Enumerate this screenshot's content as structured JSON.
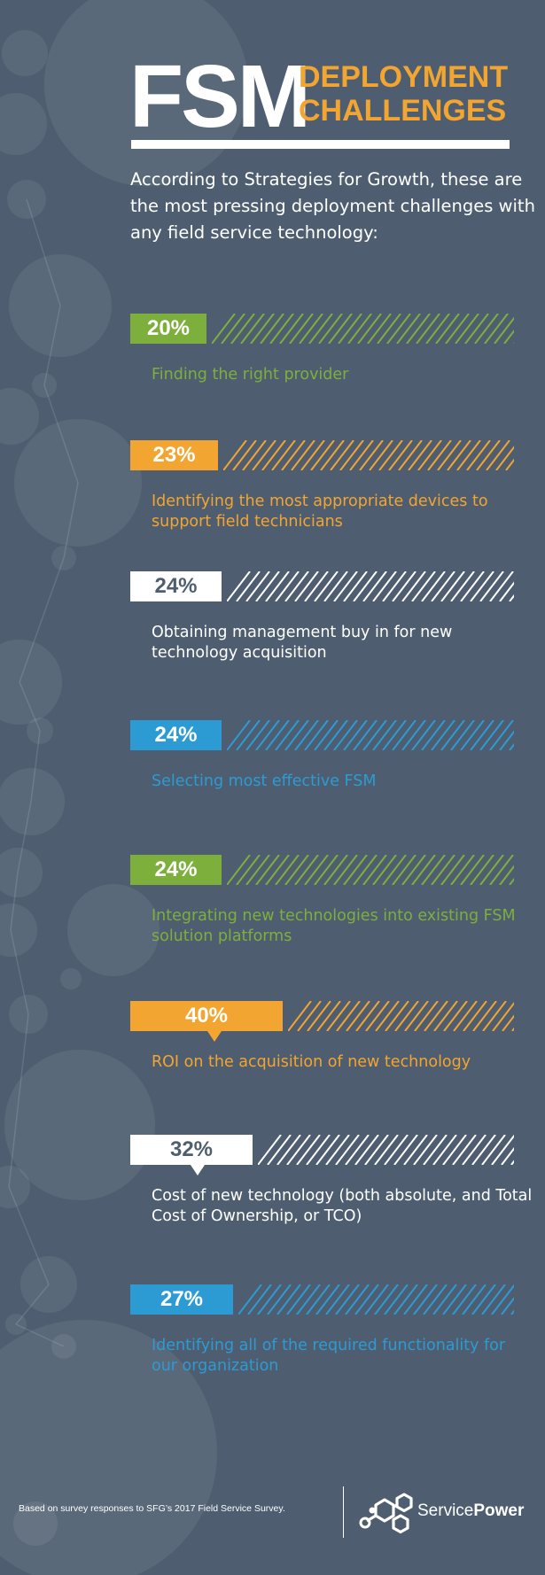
{
  "header": {
    "title_main": "FSM",
    "title_line1": "DEPLOYMENT",
    "title_line2": "CHALLENGES",
    "intro": "According to Strategies for Growth, these are the most pressing deployment challenges with any field service technology:"
  },
  "colors": {
    "background": "#4e5e70",
    "green": "#7daf3d",
    "orange": "#f2a530",
    "white": "#ffffff",
    "blue": "#2d9bd3"
  },
  "chart_data": {
    "type": "bar",
    "unit": "%",
    "items": [
      {
        "value": 20,
        "label": "20%",
        "text": "Finding the right provider",
        "color": "green",
        "pointer": false
      },
      {
        "value": 23,
        "label": "23%",
        "text": "Identifying the most appropriate devices to support field technicians",
        "color": "orange",
        "pointer": false
      },
      {
        "value": 24,
        "label": "24%",
        "text": "Obtaining management buy in for new technology acquisition",
        "color": "white",
        "pointer": false
      },
      {
        "value": 24,
        "label": "24%",
        "text": "Selecting most effective FSM",
        "color": "blue",
        "pointer": false
      },
      {
        "value": 24,
        "label": "24%",
        "text": "Integrating new technologies into existing FSM solution platforms",
        "color": "green",
        "pointer": false
      },
      {
        "value": 40,
        "label": "40%",
        "text": "ROI on the acquisition of new technology",
        "color": "orange",
        "pointer": true
      },
      {
        "value": 32,
        "label": "32%",
        "text": "Cost of new technology (both absolute, and Total Cost of Ownership, or TCO)",
        "color": "white",
        "pointer": true
      },
      {
        "value": 27,
        "label": "27%",
        "text": "Identifying all of the required functionality for our organization",
        "color": "blue",
        "pointer": false
      }
    ]
  },
  "footer": {
    "note": "Based on survey responses to SFG’s 2017 Field Service Survey.",
    "logo_light": "Service",
    "logo_bold": "Power"
  }
}
